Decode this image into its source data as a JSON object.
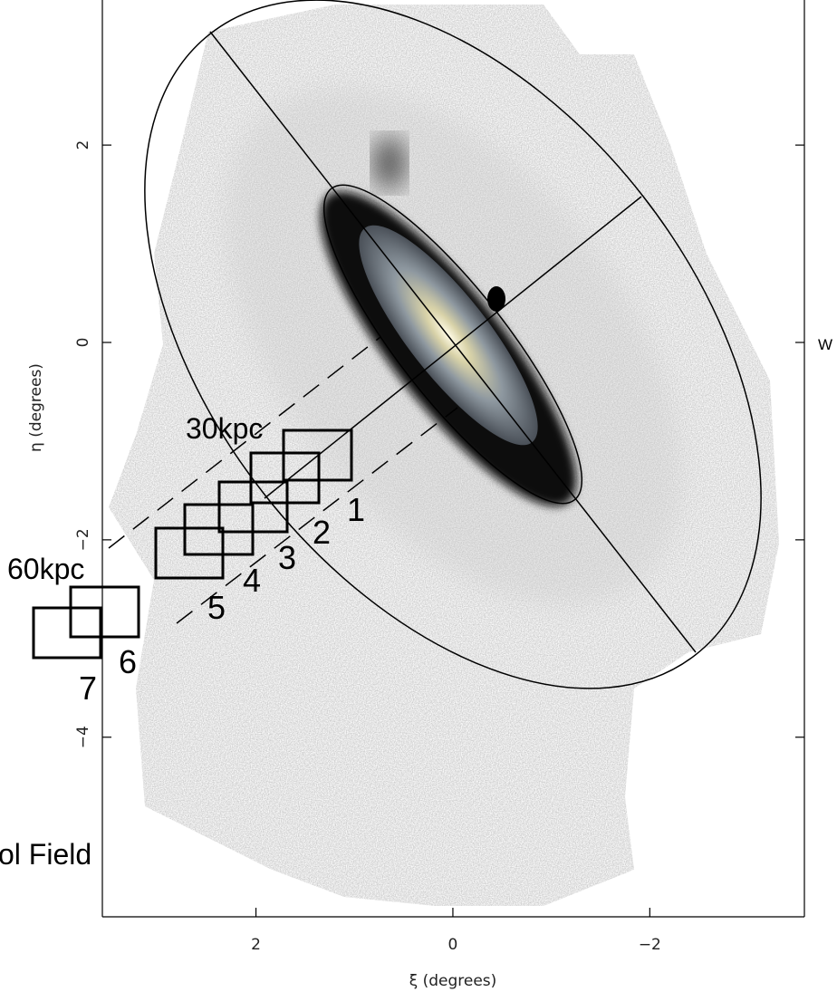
{
  "chart_data": {
    "type": "map",
    "xlabel": "ξ (degrees)",
    "ylabel": "η (degrees)",
    "xlim": [
      3.56,
      -3.57
    ],
    "ylim": [
      -5.82,
      3.47
    ],
    "xticks": [
      2,
      0,
      {
        "value": -2,
        "label": "−2"
      }
    ],
    "yticks": [
      2,
      0,
      {
        "value": -2,
        "label": "−2"
      },
      {
        "value": -4,
        "label": "−4"
      }
    ],
    "annotations": [
      "30kpc",
      "60kpc",
      "ol Field",
      "W"
    ],
    "fields": [
      "1",
      "2",
      "3",
      "4",
      "5",
      "6",
      "7"
    ]
  }
}
